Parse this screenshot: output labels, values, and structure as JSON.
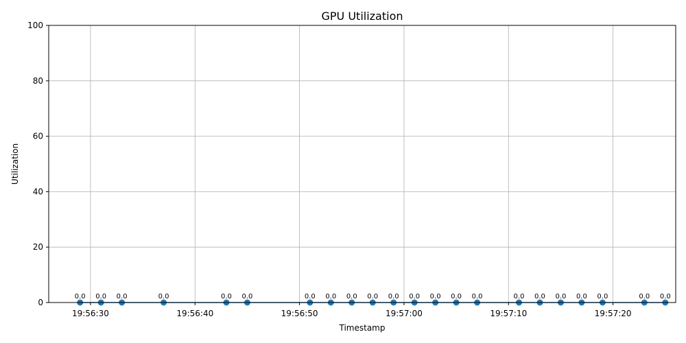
{
  "chart_data": {
    "type": "line",
    "title": "GPU Utilization",
    "xlabel": "Timestamp",
    "ylabel": "Utilization",
    "ylim": [
      0,
      100
    ],
    "xlim": [
      "19:56:26",
      "19:57:26"
    ],
    "yticks": [
      0,
      20,
      40,
      60,
      80,
      100
    ],
    "xticks": [
      "19:56:30",
      "19:56:40",
      "19:56:50",
      "19:57:00",
      "19:57:10",
      "19:57:20"
    ],
    "grid": true,
    "series": [
      {
        "x": [
          "19:56:29",
          "19:56:31",
          "19:56:33",
          "19:56:37",
          "19:56:43",
          "19:56:45",
          "19:56:51",
          "19:56:53",
          "19:56:55",
          "19:56:57",
          "19:56:59",
          "19:57:01",
          "19:57:03",
          "19:57:05",
          "19:57:07",
          "19:57:11",
          "19:57:13",
          "19:57:15",
          "19:57:17",
          "19:57:19",
          "19:57:23",
          "19:57:25"
        ],
        "values": [
          0,
          0,
          0,
          0,
          0,
          0,
          0,
          0,
          0,
          0,
          0,
          0,
          0,
          0,
          0,
          0,
          0,
          0,
          0,
          0,
          0,
          0
        ],
        "labels": [
          "0.0",
          "0.0",
          "0.0",
          "0.0",
          "0.0",
          "0.0",
          "0.0",
          "0.0",
          "0.0",
          "0.0",
          "0.0",
          "0.0",
          "0.0",
          "0.0",
          "0.0",
          "0.0",
          "0.0",
          "0.0",
          "0.0",
          "0.0",
          "0.0",
          "0.0"
        ],
        "color": "#1f77b4"
      }
    ]
  }
}
